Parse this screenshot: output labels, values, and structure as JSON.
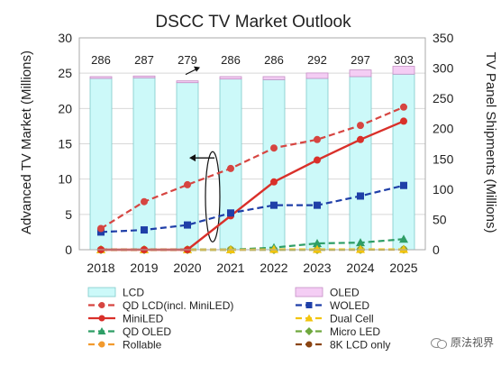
{
  "chart_data": {
    "type": "bar",
    "title": "DSCC TV Market Outlook",
    "ylabel": "Advanced TV Market (Millions)",
    "y2label": "TV Panel Shipments (Millions)",
    "categories": [
      "2018",
      "2019",
      "2020",
      "2021",
      "2022",
      "2023",
      "2024",
      "2025"
    ],
    "ylim": [
      0,
      30
    ],
    "y_ticks": [
      0,
      5,
      10,
      15,
      20,
      25,
      30
    ],
    "y2lim": [
      0,
      350
    ],
    "y2_ticks": [
      0,
      50,
      100,
      150,
      200,
      250,
      300,
      350
    ],
    "totals": [
      "286",
      "287",
      "279",
      "286",
      "286",
      "292",
      "297",
      "303"
    ],
    "bar_series": [
      {
        "name": "LCD",
        "axis": "right",
        "color": "#ccf9f9",
        "border": "#7fcaca",
        "values": [
          283,
          284,
          276,
          282,
          281,
          283,
          286,
          290
        ]
      },
      {
        "name": "OLED",
        "axis": "right",
        "color": "#f4cdf4",
        "border": "#c58fc5",
        "values": [
          3,
          3,
          3,
          4,
          5,
          9,
          11,
          13
        ]
      }
    ],
    "line_series": [
      {
        "name": "QD LCD(incl. MiniLED)",
        "color": "#d64541",
        "dash": "7,4",
        "marker": "circle",
        "values": [
          3,
          6.8,
          9.2,
          11.5,
          14.4,
          15.6,
          17.6,
          20.2
        ]
      },
      {
        "name": "WOLED",
        "color": "#1f3fa8",
        "dash": "7,4",
        "marker": "square",
        "values": [
          2.5,
          2.8,
          3.5,
          5.2,
          6.3,
          6.3,
          7.6,
          9.1
        ]
      },
      {
        "name": "MiniLED",
        "color": "#d9302a",
        "dash": "",
        "marker": "circle",
        "values": [
          0,
          0,
          0,
          4.8,
          9.6,
          12.7,
          15.6,
          18.2
        ]
      },
      {
        "name": "Dual Cell",
        "color": "#f2c40f",
        "dash": "7,4",
        "marker": "triangle",
        "values": [
          0,
          0,
          0,
          0,
          0.05,
          0.05,
          0.05,
          0.05
        ]
      },
      {
        "name": "QD OLED",
        "color": "#2e9e66",
        "dash": "7,4",
        "marker": "triangle",
        "values": [
          0,
          0,
          0,
          0,
          0.3,
          0.9,
          1.0,
          1.5
        ]
      },
      {
        "name": "Micro LED",
        "color": "#6fa83e",
        "dash": "7,4",
        "marker": "diamond",
        "values": [
          0,
          0,
          0,
          0,
          0,
          0,
          0.02,
          0.05
        ]
      },
      {
        "name": "Rollable",
        "color": "#f29a2e",
        "dash": "7,4",
        "marker": "circle",
        "values": [
          0,
          0,
          0,
          0,
          0,
          0,
          0,
          0
        ]
      },
      {
        "name": "8K LCD only",
        "color": "#8b4513",
        "dash": "7,4",
        "marker": "circle",
        "values": [
          0,
          0,
          0,
          0,
          0,
          0,
          0,
          0.03
        ]
      }
    ],
    "legend": [
      {
        "name": "LCD",
        "kind": "box",
        "color": "#ccf9f9",
        "border": "#7fcaca"
      },
      {
        "name": "OLED",
        "kind": "box",
        "color": "#f4cdf4",
        "border": "#c58fc5"
      },
      {
        "name": "QD LCD(incl. MiniLED)",
        "kind": "line",
        "color": "#d64541",
        "dash": "7,4",
        "marker": "circle"
      },
      {
        "name": "WOLED",
        "kind": "line",
        "color": "#1f3fa8",
        "dash": "7,4",
        "marker": "square"
      },
      {
        "name": "MiniLED",
        "kind": "line",
        "color": "#d9302a",
        "dash": "",
        "marker": "circle"
      },
      {
        "name": "Dual Cell",
        "kind": "line",
        "color": "#f2c40f",
        "dash": "7,4",
        "marker": "triangle"
      },
      {
        "name": "QD OLED",
        "kind": "line",
        "color": "#2e9e66",
        "dash": "7,4",
        "marker": "triangle"
      },
      {
        "name": "Micro LED",
        "kind": "line",
        "color": "#6fa83e",
        "dash": "7,4",
        "marker": "diamond"
      },
      {
        "name": "Rollable",
        "kind": "line",
        "color": "#f29a2e",
        "dash": "7,4",
        "marker": "circle"
      },
      {
        "name": "8K LCD only",
        "kind": "line",
        "color": "#8b4513",
        "dash": "7,4",
        "marker": "circle"
      }
    ],
    "grid": true,
    "legend_placement": "bottom"
  },
  "watermark": {
    "text": "原法视界",
    "icon": "wechat-icon"
  }
}
